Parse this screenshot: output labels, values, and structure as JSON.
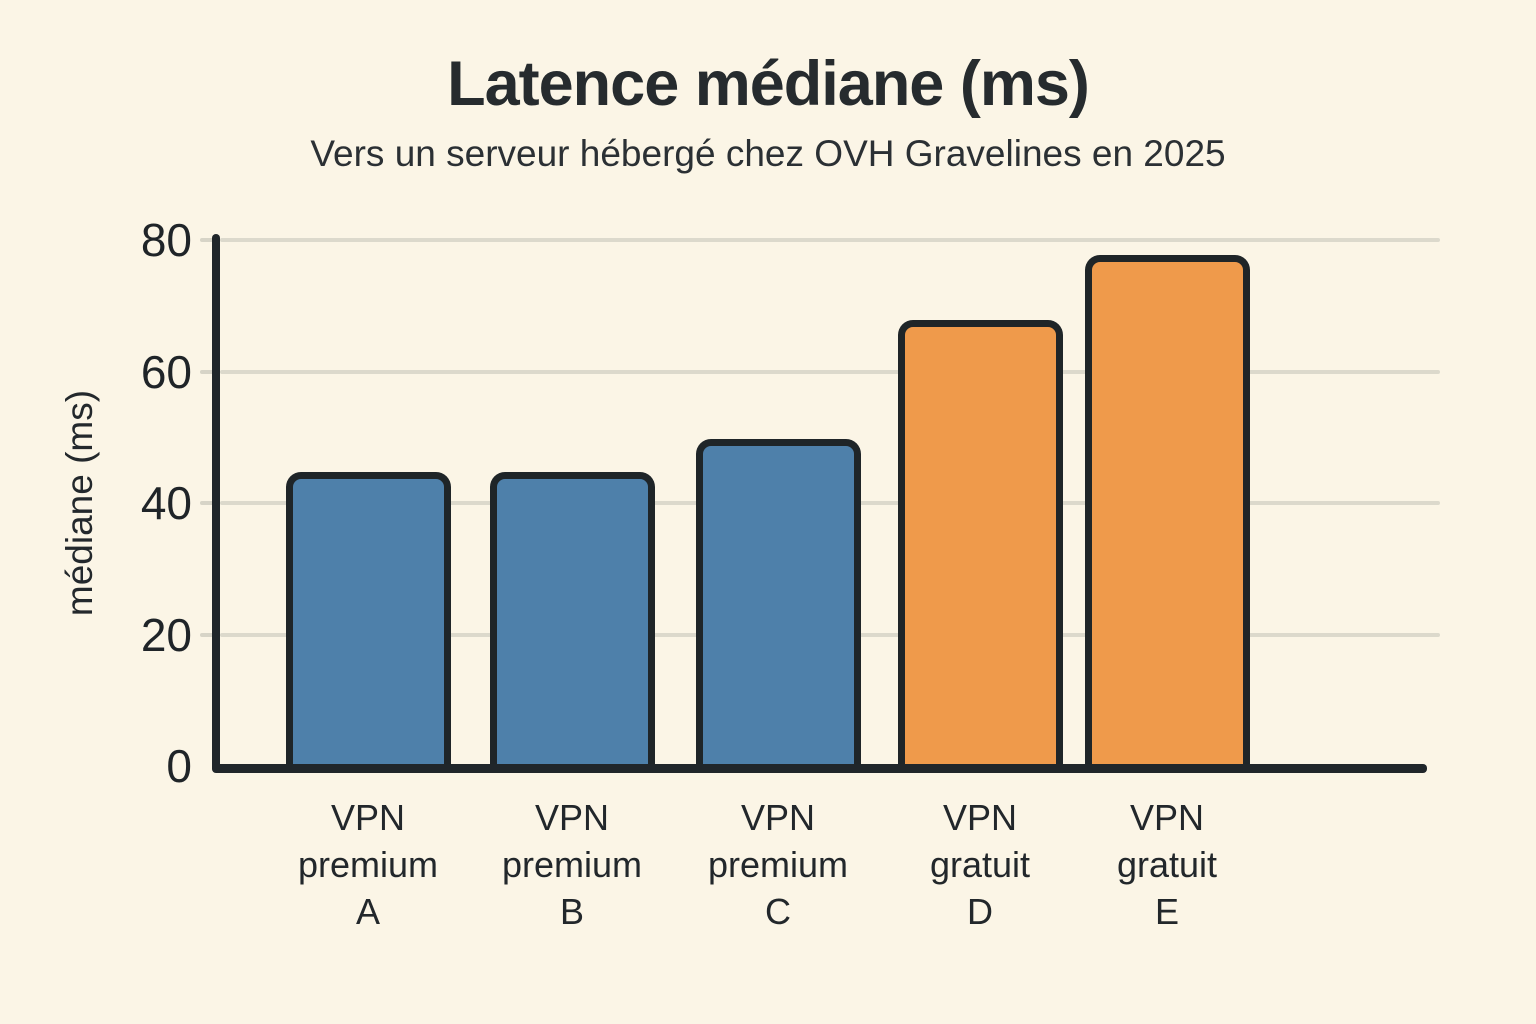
{
  "chart_data": {
    "type": "bar",
    "title": "Latence médiane (ms)",
    "subtitle": "Vers un serveur hébergé chez OVH Gravelines en 2025",
    "ylabel": "médiane (ms)",
    "xlabel": "",
    "categories": [
      "VPN premium A",
      "VPN premium B",
      "VPN premium C",
      "VPN gratuit D",
      "VPN gratuit E"
    ],
    "category_lines": [
      [
        "VPN",
        "premium",
        "A"
      ],
      [
        "VPN",
        "premium",
        "B"
      ],
      [
        "VPN",
        "premium",
        "C"
      ],
      [
        "VPN",
        "gratuit",
        "D"
      ],
      [
        "VPN",
        "gratuit",
        "E"
      ]
    ],
    "values": [
      44,
      44,
      49,
      67,
      77
    ],
    "bar_colors": [
      "#4e80aa",
      "#4e80aa",
      "#4e80aa",
      "#ef9a4b",
      "#ef9a4b"
    ],
    "yticks": [
      0,
      20,
      40,
      60,
      80
    ],
    "ylim": [
      0,
      80
    ],
    "grid": true,
    "legend": null,
    "colors": {
      "premium_blue": "#4e80aa",
      "gratuit_orange": "#ef9a4b",
      "background": "#fbf5e6",
      "axis": "#20262a",
      "gridline": "#dcd9cc",
      "text": "#23282c"
    }
  }
}
